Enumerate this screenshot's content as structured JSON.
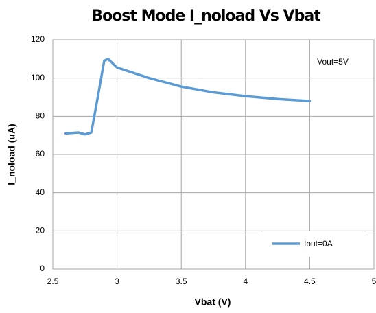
{
  "chart_data": {
    "type": "line",
    "title": "Boost Mode I_noload Vs Vbat",
    "x_label": "Vbat (V)",
    "y_label": "I_noload (uA)",
    "annotation": "Vout=5V",
    "x": [
      2.6,
      2.7,
      2.75,
      2.8,
      2.85,
      2.9,
      2.93,
      3,
      3.25,
      3.5,
      3.75,
      4,
      4.25,
      4.5
    ],
    "series": [
      {
        "name": "Iout=0A",
        "color": "#5b9bd5",
        "values": [
          71,
          71.5,
          70.5,
          71.5,
          90,
          109,
          110,
          105.5,
          100,
          95.5,
          92.5,
          90.5,
          89,
          88
        ]
      }
    ],
    "xlim": [
      2.5,
      5
    ],
    "xticks": [
      2.5,
      3,
      3.5,
      4,
      4.5,
      5
    ],
    "ylim": [
      0,
      120
    ],
    "yticks": [
      0,
      20,
      40,
      60,
      80,
      100,
      120
    ],
    "grid": true,
    "legend": "lower right"
  }
}
